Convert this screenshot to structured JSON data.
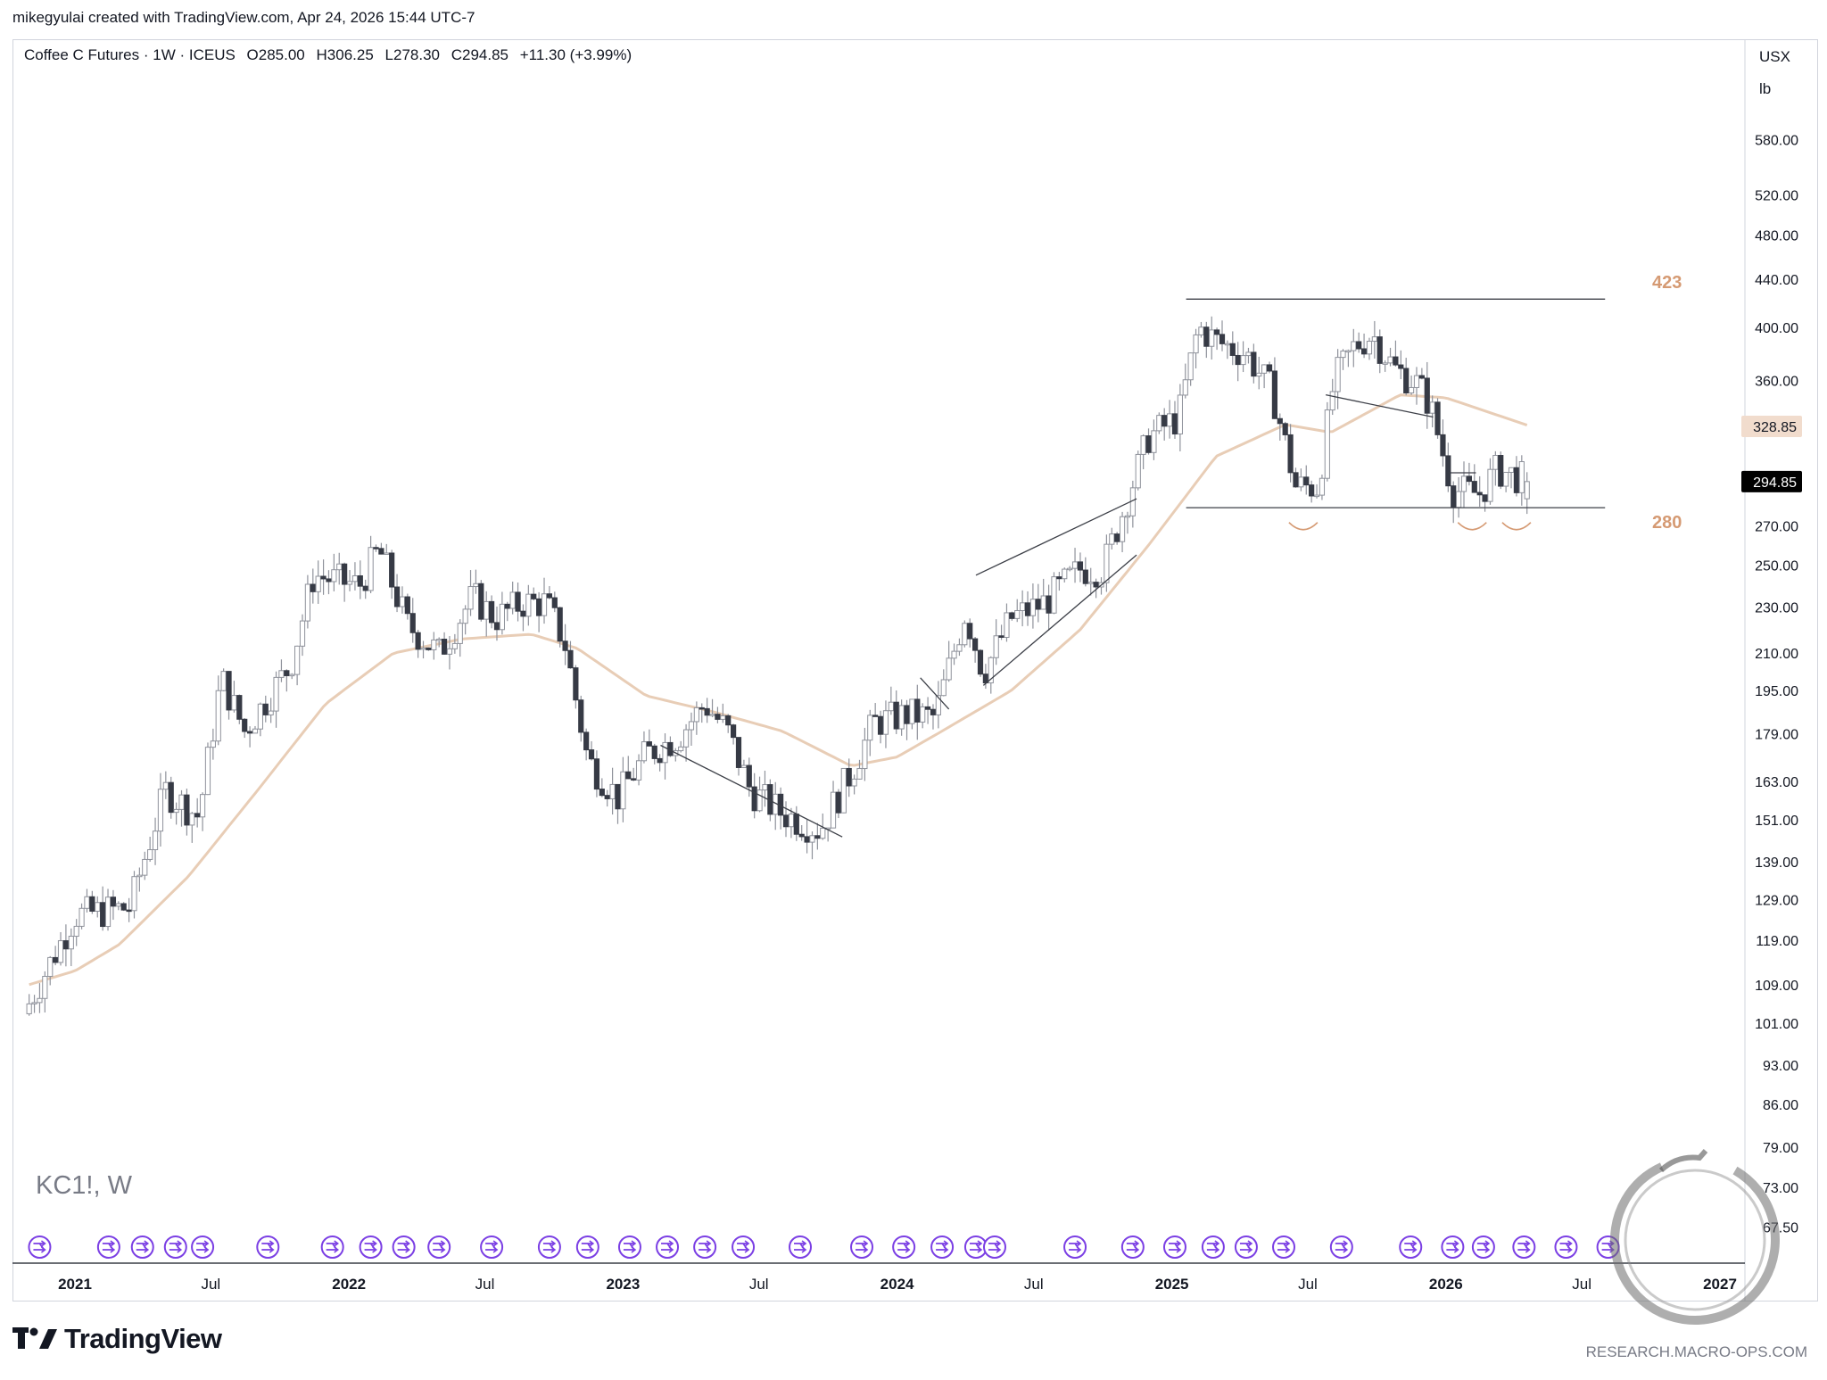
{
  "header": {
    "attribution": "mikegyulai created with TradingView.com, Apr 24, 2026 15:44 UTC-7"
  },
  "legend": {
    "symbol": "Coffee C Futures · 1W · ICEUS",
    "open": "O285.00",
    "high": "H306.25",
    "low": "L278.30",
    "close": "C294.85",
    "change": "+11.30 (+3.99%)"
  },
  "price_axis": {
    "unit_top": "USX",
    "unit_bottom": "lb",
    "labels": [
      "580.00",
      "520.00",
      "480.00",
      "440.00",
      "400.00",
      "360.00",
      "328.85",
      "294.85",
      "270.00",
      "250.00",
      "230.00",
      "210.00",
      "195.00",
      "179.00",
      "163.00",
      "151.00",
      "139.00",
      "129.00",
      "119.00",
      "109.00",
      "101.00",
      "93.00",
      "86.00",
      "79.00",
      "73.00",
      "67.50"
    ],
    "ma_value": "328.85",
    "last_price": "294.85"
  },
  "time_axis": {
    "labels": [
      "2021",
      "Jul",
      "2022",
      "Jul",
      "2023",
      "Jul",
      "2024",
      "Jul",
      "2025",
      "Jul",
      "2026",
      "Jul",
      "2027"
    ]
  },
  "ticker_watermark": "KC1!, W",
  "levels": {
    "upper": "423",
    "lower": "280"
  },
  "brand": {
    "name": "TradingView",
    "footer_url": "RESEARCH.MACRO-OPS.COM"
  },
  "colors": {
    "bull_candle_fill": "#ffffff",
    "bear_candle_fill": "#363a45",
    "candle_outline": "#8f929b",
    "moving_average": "#e8cdb6",
    "level_label": "#d59a73",
    "event_marker": "#7b3fe4",
    "last_price_bg": "#000000",
    "ma_tag_bg": "#f1dccd"
  },
  "event_marker_icon": "split-arrow-icon",
  "chart_data": {
    "type": "candlestick",
    "title": "Coffee C Futures · 1W · ICEUS",
    "xlabel": "",
    "ylabel": "",
    "y_scale": "log",
    "ylim": [
      64,
      630
    ],
    "x_range": [
      "2020-11",
      "2027-01"
    ],
    "grid": false,
    "horizontal_levels": [
      423,
      280
    ],
    "moving_average_last": 328.85,
    "last_close": 294.85,
    "anchors": [
      {
        "date": "2020-11-01",
        "close": 105
      },
      {
        "date": "2021-01-01",
        "close": 125
      },
      {
        "date": "2021-03-15",
        "close": 127
      },
      {
        "date": "2021-05-01",
        "close": 160
      },
      {
        "date": "2021-06-15",
        "close": 152
      },
      {
        "date": "2021-07-15",
        "close": 200
      },
      {
        "date": "2021-08-15",
        "close": 180
      },
      {
        "date": "2021-10-15",
        "close": 205
      },
      {
        "date": "2021-11-15",
        "close": 245
      },
      {
        "date": "2022-01-15",
        "close": 240
      },
      {
        "date": "2022-02-10",
        "close": 258
      },
      {
        "date": "2022-03-20",
        "close": 222
      },
      {
        "date": "2022-05-01",
        "close": 210
      },
      {
        "date": "2022-06-15",
        "close": 235
      },
      {
        "date": "2022-07-15",
        "close": 225
      },
      {
        "date": "2022-08-20",
        "close": 232
      },
      {
        "date": "2022-09-20",
        "close": 232
      },
      {
        "date": "2022-10-15",
        "close": 215
      },
      {
        "date": "2022-11-15",
        "close": 170
      },
      {
        "date": "2022-12-25",
        "close": 158
      },
      {
        "date": "2023-02-01",
        "close": 172
      },
      {
        "date": "2023-03-15",
        "close": 178
      },
      {
        "date": "2023-04-20",
        "close": 190
      },
      {
        "date": "2023-05-20",
        "close": 180
      },
      {
        "date": "2023-06-20",
        "close": 160
      },
      {
        "date": "2023-08-01",
        "close": 153
      },
      {
        "date": "2023-09-20",
        "close": 148
      },
      {
        "date": "2023-11-01",
        "close": 166
      },
      {
        "date": "2023-12-01",
        "close": 183
      },
      {
        "date": "2024-01-15",
        "close": 186
      },
      {
        "date": "2024-02-20",
        "close": 185
      },
      {
        "date": "2024-04-01",
        "close": 228
      },
      {
        "date": "2024-04-25",
        "close": 202
      },
      {
        "date": "2024-06-01",
        "close": 225
      },
      {
        "date": "2024-07-15",
        "close": 232
      },
      {
        "date": "2024-09-01",
        "close": 248
      },
      {
        "date": "2024-10-01",
        "close": 248
      },
      {
        "date": "2024-11-01",
        "close": 283
      },
      {
        "date": "2024-12-01",
        "close": 322
      },
      {
        "date": "2025-01-10",
        "close": 335
      },
      {
        "date": "2025-02-05",
        "close": 400
      },
      {
        "date": "2025-03-05",
        "close": 388
      },
      {
        "date": "2025-04-10",
        "close": 380
      },
      {
        "date": "2025-05-15",
        "close": 352
      },
      {
        "date": "2025-06-15",
        "close": 292
      },
      {
        "date": "2025-07-15",
        "close": 292
      },
      {
        "date": "2025-08-05",
        "close": 360
      },
      {
        "date": "2025-09-01",
        "close": 385
      },
      {
        "date": "2025-09-25",
        "close": 395
      },
      {
        "date": "2025-10-25",
        "close": 368
      },
      {
        "date": "2025-11-20",
        "close": 360
      },
      {
        "date": "2025-12-10",
        "close": 345
      },
      {
        "date": "2026-01-10",
        "close": 290
      },
      {
        "date": "2026-02-15",
        "close": 288
      },
      {
        "date": "2026-03-10",
        "close": 302
      },
      {
        "date": "2026-04-24",
        "close": 294.85
      }
    ],
    "moving_average": [
      {
        "date": "2020-11-01",
        "value": 109
      },
      {
        "date": "2021-01-01",
        "value": 112
      },
      {
        "date": "2021-03-01",
        "value": 118
      },
      {
        "date": "2021-06-01",
        "value": 135
      },
      {
        "date": "2021-09-01",
        "value": 160
      },
      {
        "date": "2021-12-01",
        "value": 190
      },
      {
        "date": "2022-03-01",
        "value": 210
      },
      {
        "date": "2022-06-01",
        "value": 216
      },
      {
        "date": "2022-09-01",
        "value": 218
      },
      {
        "date": "2022-11-01",
        "value": 212
      },
      {
        "date": "2023-02-01",
        "value": 193
      },
      {
        "date": "2023-05-01",
        "value": 187
      },
      {
        "date": "2023-08-01",
        "value": 180
      },
      {
        "date": "2023-11-01",
        "value": 168
      },
      {
        "date": "2024-01-01",
        "value": 171
      },
      {
        "date": "2024-03-01",
        "value": 180
      },
      {
        "date": "2024-06-01",
        "value": 195
      },
      {
        "date": "2024-09-01",
        "value": 220
      },
      {
        "date": "2024-12-01",
        "value": 260
      },
      {
        "date": "2025-03-01",
        "value": 310
      },
      {
        "date": "2025-06-01",
        "value": 330
      },
      {
        "date": "2025-08-01",
        "value": 325
      },
      {
        "date": "2025-11-01",
        "value": 350
      },
      {
        "date": "2026-01-01",
        "value": 348
      },
      {
        "date": "2026-04-24",
        "value": 328.85
      }
    ],
    "trendlines": [
      {
        "from": {
          "date": "2023-02-20",
          "value": 175
        },
        "to": {
          "date": "2023-10-20",
          "value": 146
        }
      },
      {
        "from": {
          "date": "2024-02-01",
          "value": 200
        },
        "to": {
          "date": "2024-03-10",
          "value": 188
        }
      },
      {
        "from": {
          "date": "2024-04-15",
          "value": 245
        },
        "to": {
          "date": "2024-11-15",
          "value": 285
        }
      },
      {
        "from": {
          "date": "2024-04-25",
          "value": 197
        },
        "to": {
          "date": "2024-11-15",
          "value": 255
        }
      },
      {
        "from": {
          "date": "2025-07-25",
          "value": 350
        },
        "to": {
          "date": "2025-12-15",
          "value": 335
        }
      },
      {
        "from": {
          "date": "2026-01-05",
          "value": 300
        },
        "to": {
          "date": "2026-02-10",
          "value": 300
        }
      }
    ],
    "level_segments": [
      {
        "value": 423,
        "from": "2025-01-20",
        "to": "2026-08-01"
      },
      {
        "value": 280,
        "from": "2025-01-20",
        "to": "2026-08-01"
      }
    ],
    "bottom_arcs": [
      "2025-06-25",
      "2026-02-05",
      "2026-04-05"
    ],
    "event_marker_dates": [
      "2020-11-15",
      "2021-02-15",
      "2021-04-01",
      "2021-05-15",
      "2021-06-20",
      "2021-09-15",
      "2021-12-10",
      "2022-01-30",
      "2022-03-15",
      "2022-05-01",
      "2022-07-10",
      "2022-09-25",
      "2022-11-15",
      "2023-01-10",
      "2023-03-01",
      "2023-04-20",
      "2023-06-10",
      "2023-08-25",
      "2023-11-15",
      "2024-01-10",
      "2024-03-01",
      "2024-04-15",
      "2024-05-10",
      "2024-08-25",
      "2024-11-10",
      "2025-01-05",
      "2025-02-25",
      "2025-04-10",
      "2025-05-30",
      "2025-08-15",
      "2025-11-15",
      "2026-01-10",
      "2026-02-20",
      "2026-04-15",
      "2026-06-10",
      "2026-08-05"
    ]
  }
}
